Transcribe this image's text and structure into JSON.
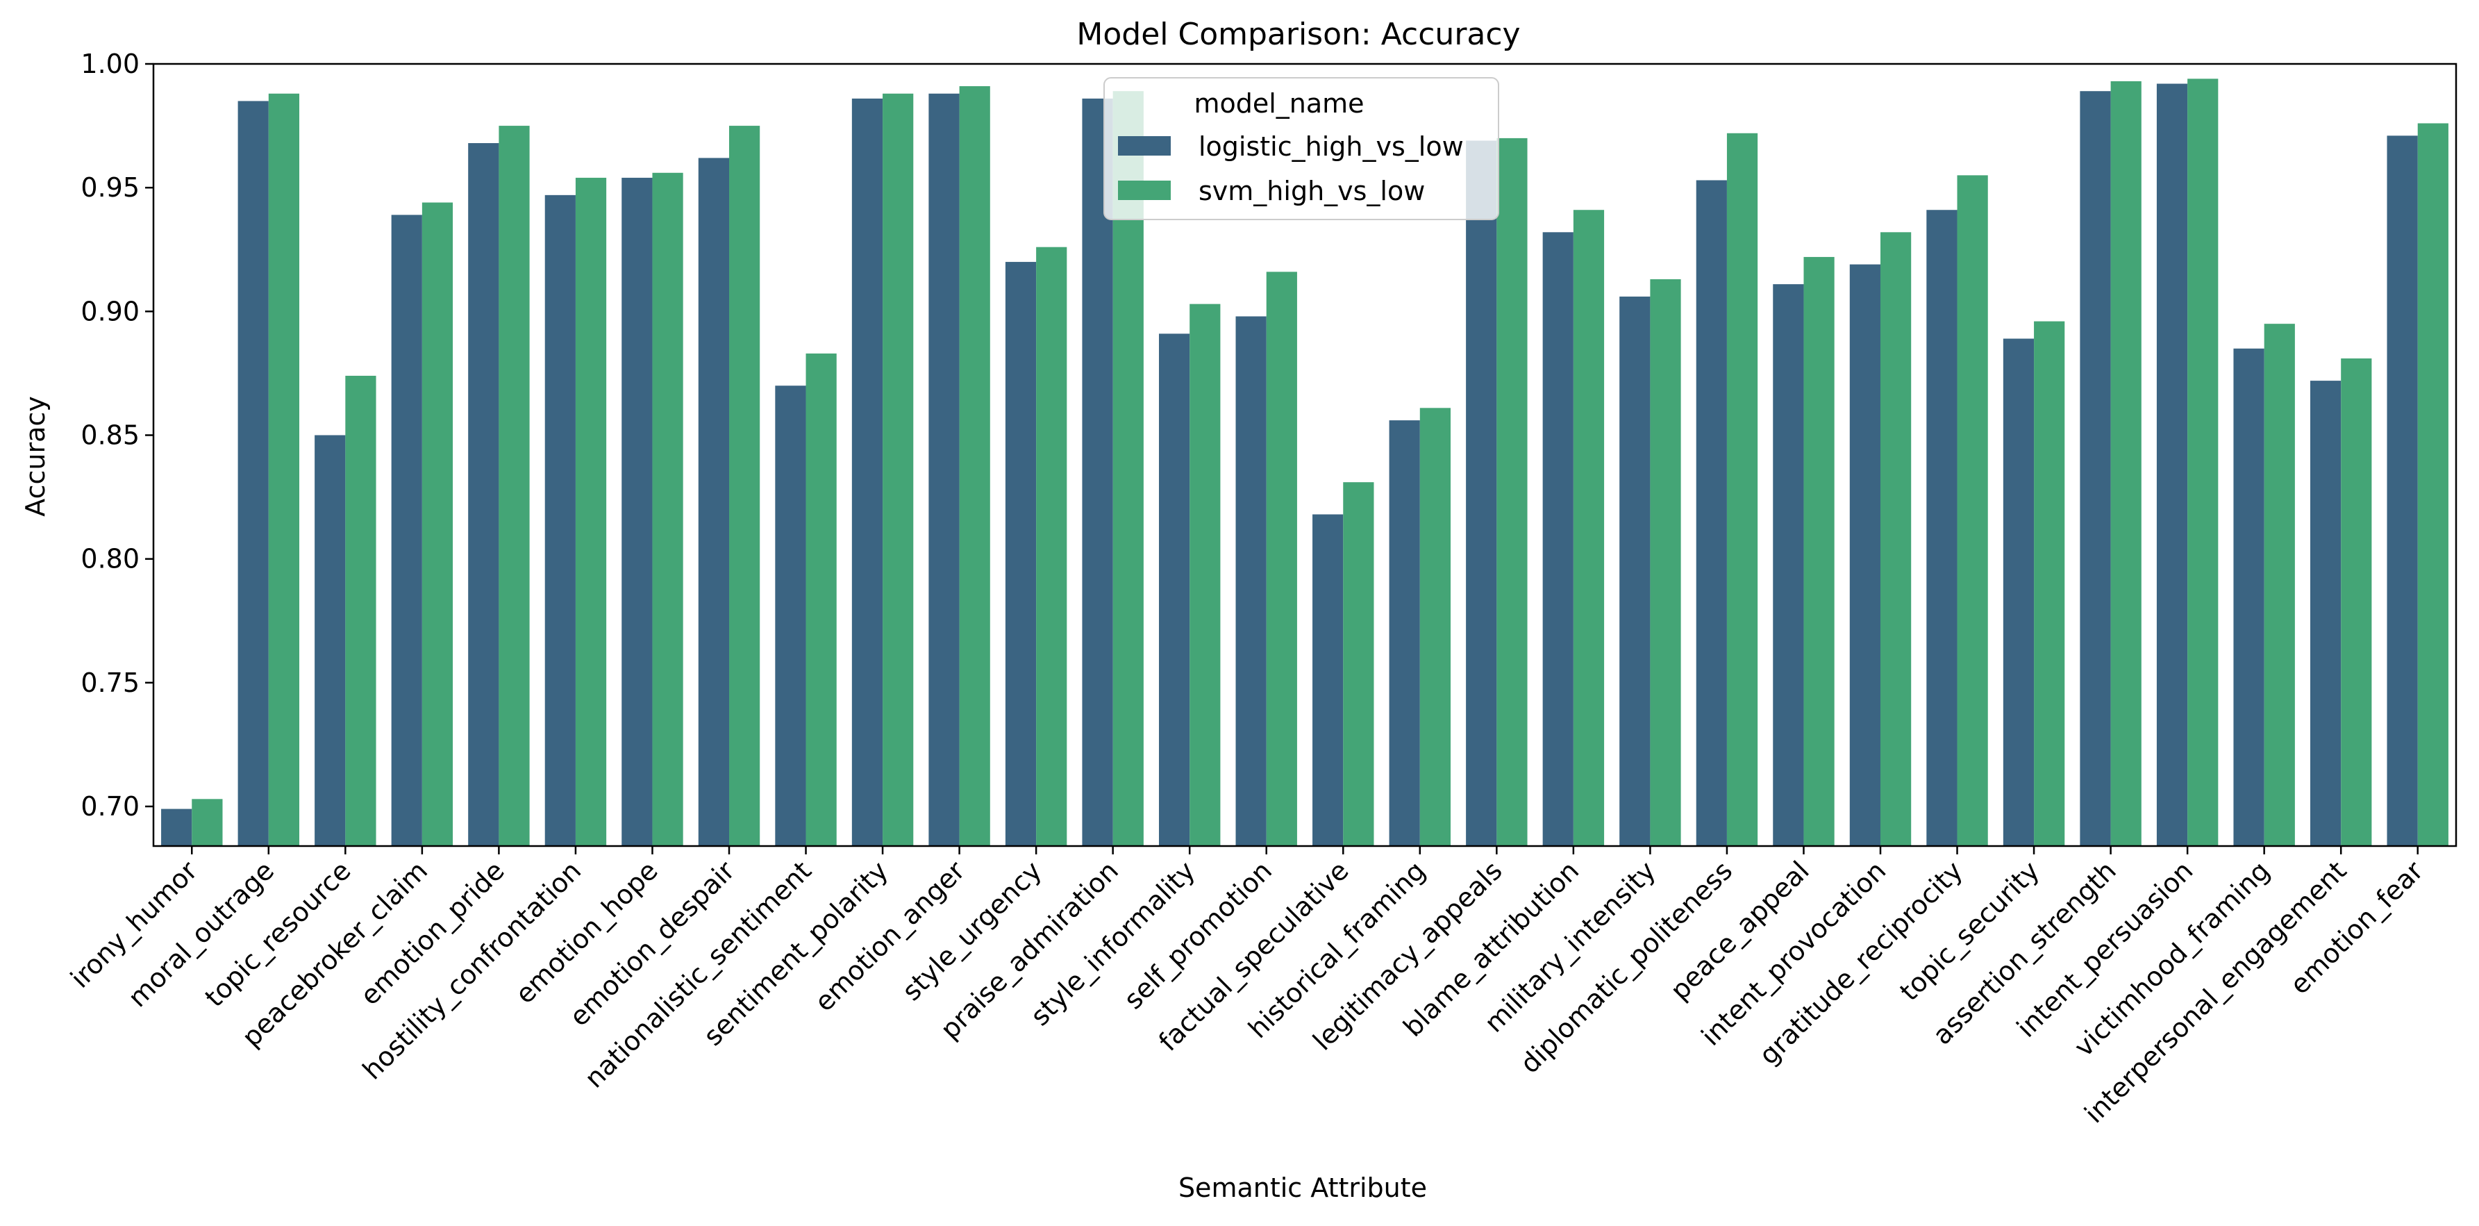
{
  "chart_data": {
    "type": "bar",
    "title": "Model Comparison: Accuracy",
    "xlabel": "Semantic Attribute",
    "ylabel": "Accuracy",
    "ylim": [
      0.684,
      1.0
    ],
    "yticks": [
      "0.70",
      "0.75",
      "0.80",
      "0.85",
      "0.90",
      "0.95",
      "1.00"
    ],
    "ytick_values": [
      0.7,
      0.75,
      0.8,
      0.85,
      0.9,
      0.95,
      1.0
    ],
    "grid": false,
    "legend_position": "top-center",
    "categories": [
      "irony_humor",
      "moral_outrage",
      "topic_resource",
      "peacebroker_claim",
      "emotion_pride",
      "hostility_confrontation",
      "emotion_hope",
      "emotion_despair",
      "nationalistic_sentiment",
      "sentiment_polarity",
      "emotion_anger",
      "style_urgency",
      "praise_admiration",
      "style_informality",
      "self_promotion",
      "factual_speculative",
      "historical_framing",
      "legitimacy_appeals",
      "blame_attribution",
      "military_intensity",
      "diplomatic_politeness",
      "peace_appeal",
      "intent_provocation",
      "gratitude_reciprocity",
      "topic_security",
      "assertion_strength",
      "intent_persuasion",
      "victimhood_framing",
      "interpersonal_engagement",
      "emotion_fear"
    ],
    "legend_title": "model_name",
    "series": [
      {
        "name": "logistic_high_vs_low",
        "color": "#3b6482",
        "values": [
          0.699,
          0.985,
          0.85,
          0.939,
          0.968,
          0.947,
          0.954,
          0.962,
          0.87,
          0.986,
          0.988,
          0.92,
          0.986,
          0.891,
          0.898,
          0.818,
          0.856,
          0.969,
          0.932,
          0.906,
          0.953,
          0.911,
          0.919,
          0.941,
          0.889,
          0.989,
          0.992,
          0.885,
          0.872,
          0.971
        ]
      },
      {
        "name": "svm_high_vs_low",
        "color": "#44a576",
        "values": [
          0.703,
          0.988,
          0.874,
          0.944,
          0.975,
          0.954,
          0.956,
          0.975,
          0.883,
          0.988,
          0.991,
          0.926,
          0.989,
          0.903,
          0.916,
          0.831,
          0.861,
          0.97,
          0.941,
          0.913,
          0.972,
          0.922,
          0.932,
          0.955,
          0.896,
          0.993,
          0.994,
          0.895,
          0.881,
          0.976
        ]
      }
    ]
  }
}
